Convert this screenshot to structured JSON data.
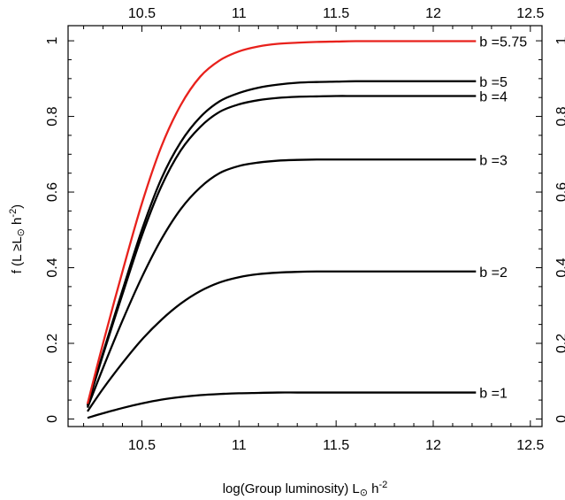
{
  "chart_data": {
    "type": "line",
    "title": "",
    "xlabel": {
      "main": "log(Group luminosity) L",
      "sub": "⊙",
      "tail": " h",
      "sup": "-2"
    },
    "ylabel": {
      "main": "f (L  ≥L",
      "sub": "⊙",
      "tail": " h",
      "sup": "-2",
      "close": ")"
    },
    "xlim": [
      10.12,
      12.56
    ],
    "ylim": [
      -0.02,
      1.04
    ],
    "x_ticks": [
      10.5,
      11,
      11.5,
      12,
      12.5
    ],
    "x_tick_labels": [
      "10.5",
      "11",
      "11.5",
      "12",
      "12.5"
    ],
    "y_ticks": [
      0,
      0.2,
      0.4,
      0.6,
      0.8,
      1
    ],
    "y_tick_labels": [
      "0",
      "0.2",
      "0.4",
      "0.6",
      "0.8",
      "1"
    ],
    "grid": false,
    "legend": "none",
    "x": [
      10.22,
      10.3,
      10.4,
      10.5,
      10.6,
      10.7,
      10.8,
      10.9,
      11.0,
      11.1,
      11.2,
      11.3,
      11.4,
      11.5,
      11.6,
      11.8,
      12.0,
      12.22
    ],
    "series": [
      {
        "name": "b =1",
        "color": "#000000",
        "values": [
          0.003,
          0.015,
          0.029,
          0.041,
          0.051,
          0.058,
          0.063,
          0.066,
          0.068,
          0.069,
          0.07,
          0.07,
          0.07,
          0.07,
          0.07,
          0.07,
          0.07,
          0.07
        ]
      },
      {
        "name": "b =2",
        "color": "#000000",
        "values": [
          0.02,
          0.08,
          0.148,
          0.21,
          0.262,
          0.305,
          0.338,
          0.361,
          0.375,
          0.383,
          0.387,
          0.389,
          0.39,
          0.39,
          0.39,
          0.39,
          0.39,
          0.39
        ]
      },
      {
        "name": "b =3",
        "color": "#000000",
        "values": [
          0.03,
          0.135,
          0.26,
          0.375,
          0.475,
          0.555,
          0.612,
          0.65,
          0.669,
          0.678,
          0.683,
          0.685,
          0.686,
          0.686,
          0.686,
          0.686,
          0.686,
          0.686
        ]
      },
      {
        "name": "b =4",
        "color": "#000000",
        "values": [
          0.035,
          0.17,
          0.33,
          0.485,
          0.615,
          0.71,
          0.772,
          0.812,
          0.832,
          0.843,
          0.849,
          0.852,
          0.853,
          0.854,
          0.854,
          0.854,
          0.854,
          0.854
        ]
      },
      {
        "name": "b =5",
        "color": "#000000",
        "values": [
          0.035,
          0.175,
          0.34,
          0.5,
          0.635,
          0.732,
          0.798,
          0.84,
          0.862,
          0.876,
          0.884,
          0.889,
          0.891,
          0.892,
          0.893,
          0.893,
          0.893,
          0.893
        ]
      },
      {
        "name": "b =5.75",
        "color": "#e8211c",
        "values": [
          0.04,
          0.2,
          0.39,
          0.57,
          0.72,
          0.83,
          0.905,
          0.948,
          0.972,
          0.985,
          0.992,
          0.995,
          0.997,
          0.998,
          0.999,
          0.999,
          0.999,
          0.999
        ]
      }
    ]
  }
}
